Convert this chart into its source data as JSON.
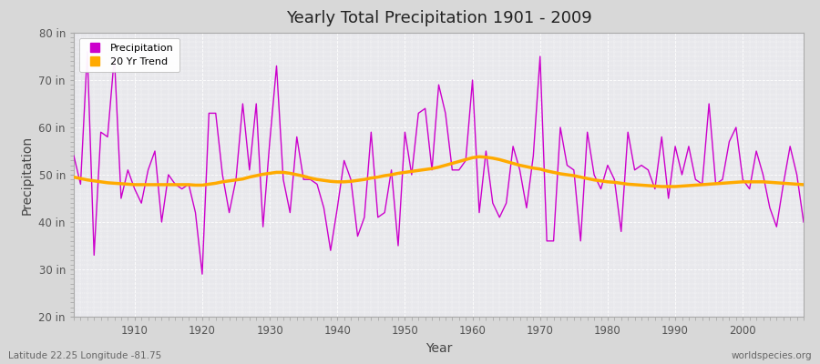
{
  "title": "Yearly Total Precipitation 1901 - 2009",
  "xlabel": "Year",
  "ylabel": "Precipitation",
  "subtitle_left": "Latitude 22.25 Longitude -81.75",
  "subtitle_right": "worldspecies.org",
  "bg_color": "#d8d8d8",
  "plot_bg_color": "#e8e8ec",
  "precip_color": "#cc00cc",
  "trend_color": "#ffaa00",
  "ylim": [
    20,
    80
  ],
  "yticks": [
    20,
    30,
    40,
    50,
    60,
    70,
    80
  ],
  "ytick_labels": [
    "20 in",
    "30 in",
    "40 in",
    "50 in",
    "60 in",
    "70 in",
    "80 in"
  ],
  "years": [
    1901,
    1902,
    1903,
    1904,
    1905,
    1906,
    1907,
    1908,
    1909,
    1910,
    1911,
    1912,
    1913,
    1914,
    1915,
    1916,
    1917,
    1918,
    1919,
    1920,
    1921,
    1922,
    1923,
    1924,
    1925,
    1926,
    1927,
    1928,
    1929,
    1930,
    1931,
    1932,
    1933,
    1934,
    1935,
    1936,
    1937,
    1938,
    1939,
    1940,
    1941,
    1942,
    1943,
    1944,
    1945,
    1946,
    1947,
    1948,
    1949,
    1950,
    1951,
    1952,
    1953,
    1954,
    1955,
    1956,
    1957,
    1958,
    1959,
    1960,
    1961,
    1962,
    1963,
    1964,
    1965,
    1966,
    1967,
    1968,
    1969,
    1970,
    1971,
    1972,
    1973,
    1974,
    1975,
    1976,
    1977,
    1978,
    1979,
    1980,
    1981,
    1982,
    1983,
    1984,
    1985,
    1986,
    1987,
    1988,
    1989,
    1990,
    1991,
    1992,
    1993,
    1994,
    1995,
    1996,
    1997,
    1998,
    1999,
    2000,
    2001,
    2002,
    2003,
    2004,
    2005,
    2006,
    2007,
    2008,
    2009
  ],
  "precip": [
    54,
    48,
    76,
    33,
    59,
    58,
    75,
    45,
    51,
    47,
    44,
    51,
    55,
    40,
    50,
    48,
    47,
    48,
    42,
    29,
    63,
    63,
    50,
    42,
    49,
    65,
    51,
    65,
    39,
    57,
    73,
    49,
    42,
    58,
    49,
    49,
    48,
    43,
    34,
    43,
    53,
    49,
    37,
    41,
    59,
    41,
    42,
    51,
    35,
    59,
    50,
    63,
    64,
    51,
    69,
    63,
    51,
    51,
    53,
    70,
    42,
    55,
    44,
    41,
    44,
    56,
    51,
    43,
    54,
    75,
    36,
    36,
    60,
    52,
    51,
    36,
    59,
    50,
    47,
    52,
    49,
    38,
    59,
    51,
    52,
    51,
    47,
    58,
    45,
    56,
    50,
    56,
    49,
    48,
    65,
    48,
    49,
    57,
    60,
    49,
    47,
    55,
    50,
    43,
    39,
    48,
    56,
    50,
    40
  ],
  "trend": [
    49.5,
    49.2,
    48.9,
    48.7,
    48.5,
    48.3,
    48.2,
    48.1,
    48.0,
    47.9,
    47.9,
    47.9,
    47.9,
    47.9,
    47.9,
    47.9,
    47.9,
    47.9,
    47.8,
    47.8,
    48.0,
    48.2,
    48.5,
    48.7,
    48.9,
    49.1,
    49.5,
    49.8,
    50.1,
    50.3,
    50.5,
    50.5,
    50.3,
    50.0,
    49.7,
    49.3,
    49.0,
    48.8,
    48.6,
    48.5,
    48.5,
    48.6,
    48.8,
    49.0,
    49.3,
    49.5,
    49.8,
    50.0,
    50.3,
    50.5,
    50.7,
    50.9,
    51.1,
    51.3,
    51.6,
    52.0,
    52.4,
    52.8,
    53.2,
    53.6,
    53.8,
    53.7,
    53.5,
    53.2,
    52.8,
    52.4,
    52.0,
    51.7,
    51.4,
    51.2,
    50.8,
    50.5,
    50.2,
    50.0,
    49.8,
    49.5,
    49.2,
    48.9,
    48.7,
    48.5,
    48.4,
    48.2,
    48.0,
    47.9,
    47.8,
    47.7,
    47.6,
    47.5,
    47.5,
    47.5,
    47.6,
    47.7,
    47.8,
    47.9,
    48.0,
    48.1,
    48.2,
    48.3,
    48.4,
    48.5,
    48.5,
    48.5,
    48.5,
    48.4,
    48.3,
    48.2,
    48.1,
    48.0,
    47.9
  ]
}
